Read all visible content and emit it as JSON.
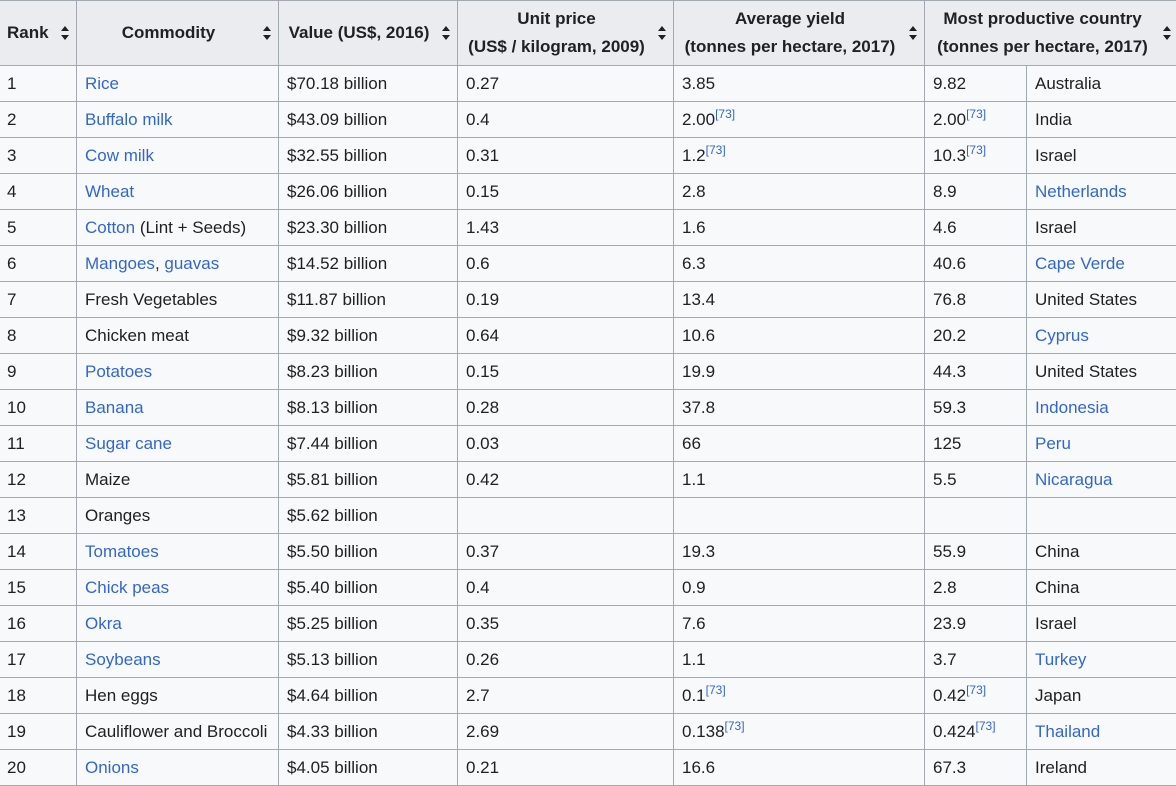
{
  "headers": {
    "rank": "Rank",
    "commodity": "Commodity",
    "value": "Value (US$, 2016)",
    "unit_price_l1": "Unit price",
    "unit_price_l2": "(US$ / kilogram, 2009)",
    "yield_l1": "Average yield",
    "yield_l2": "(tonnes per hectare, 2017)",
    "country_l1": "Most productive country",
    "country_l2": "(tonnes per hectare, 2017)"
  },
  "rows": [
    {
      "rank": "1",
      "commodity": [
        {
          "t": "Rice",
          "link": true
        }
      ],
      "value": "$70.18 billion",
      "price": "0.27",
      "yield": "3.85",
      "yield_ref": "",
      "best": "9.82",
      "best_ref": "",
      "country": "Australia",
      "country_link": false
    },
    {
      "rank": "2",
      "commodity": [
        {
          "t": "Buffalo milk",
          "link": true
        }
      ],
      "value": "$43.09 billion",
      "price": "0.4",
      "yield": "2.00",
      "yield_ref": "[73]",
      "best": "2.00",
      "best_ref": "[73]",
      "country": "India",
      "country_link": false
    },
    {
      "rank": "3",
      "commodity": [
        {
          "t": "Cow milk",
          "link": true
        }
      ],
      "value": "$32.55 billion",
      "price": "0.31",
      "yield": "1.2",
      "yield_ref": "[73]",
      "best": "10.3",
      "best_ref": "[73]",
      "country": "Israel",
      "country_link": false
    },
    {
      "rank": "4",
      "commodity": [
        {
          "t": "Wheat",
          "link": true
        }
      ],
      "value": "$26.06 billion",
      "price": "0.15",
      "yield": "2.8",
      "yield_ref": "",
      "best": "8.9",
      "best_ref": "",
      "country": "Netherlands",
      "country_link": true
    },
    {
      "rank": "5",
      "commodity": [
        {
          "t": "Cotton",
          "link": true
        },
        {
          "t": " (Lint + Seeds)",
          "link": false
        }
      ],
      "value": "$23.30 billion",
      "price": "1.43",
      "yield": "1.6",
      "yield_ref": "",
      "best": "4.6",
      "best_ref": "",
      "country": "Israel",
      "country_link": false
    },
    {
      "rank": "6",
      "commodity": [
        {
          "t": "Mangoes",
          "link": true
        },
        {
          "t": ", ",
          "link": false
        },
        {
          "t": "guavas",
          "link": true
        }
      ],
      "value": "$14.52 billion",
      "price": "0.6",
      "yield": "6.3",
      "yield_ref": "",
      "best": "40.6",
      "best_ref": "",
      "country": "Cape Verde",
      "country_link": true
    },
    {
      "rank": "7",
      "commodity": [
        {
          "t": "Fresh Vegetables",
          "link": false
        }
      ],
      "value": "$11.87 billion",
      "price": "0.19",
      "yield": "13.4",
      "yield_ref": "",
      "best": "76.8",
      "best_ref": "",
      "country": "United States",
      "country_link": false
    },
    {
      "rank": "8",
      "commodity": [
        {
          "t": "Chicken meat",
          "link": false
        }
      ],
      "value": "$9.32 billion",
      "price": "0.64",
      "yield": "10.6",
      "yield_ref": "",
      "best": "20.2",
      "best_ref": "",
      "country": "Cyprus",
      "country_link": true
    },
    {
      "rank": "9",
      "commodity": [
        {
          "t": "Potatoes",
          "link": true
        }
      ],
      "value": "$8.23 billion",
      "price": "0.15",
      "yield": "19.9",
      "yield_ref": "",
      "best": "44.3",
      "best_ref": "",
      "country": "United States",
      "country_link": false
    },
    {
      "rank": "10",
      "commodity": [
        {
          "t": "Banana",
          "link": true
        }
      ],
      "value": "$8.13 billion",
      "price": "0.28",
      "yield": "37.8",
      "yield_ref": "",
      "best": "59.3",
      "best_ref": "",
      "country": "Indonesia",
      "country_link": true
    },
    {
      "rank": "11",
      "commodity": [
        {
          "t": "Sugar cane",
          "link": true
        }
      ],
      "value": "$7.44 billion",
      "price": "0.03",
      "yield": "66",
      "yield_ref": "",
      "best": "125",
      "best_ref": "",
      "country": "Peru",
      "country_link": true
    },
    {
      "rank": "12",
      "commodity": [
        {
          "t": "Maize",
          "link": false
        }
      ],
      "value": "$5.81 billion",
      "price": "0.42",
      "yield": "1.1",
      "yield_ref": "",
      "best": "5.5",
      "best_ref": "",
      "country": "Nicaragua",
      "country_link": true
    },
    {
      "rank": "13",
      "commodity": [
        {
          "t": "Oranges",
          "link": false
        }
      ],
      "value": "$5.62 billion",
      "price": "",
      "yield": "",
      "yield_ref": "",
      "best": "",
      "best_ref": "",
      "country": "",
      "country_link": false
    },
    {
      "rank": "14",
      "commodity": [
        {
          "t": "Tomatoes",
          "link": true
        }
      ],
      "value": "$5.50 billion",
      "price": "0.37",
      "yield": "19.3",
      "yield_ref": "",
      "best": "55.9",
      "best_ref": "",
      "country": "China",
      "country_link": false
    },
    {
      "rank": "15",
      "commodity": [
        {
          "t": "Chick peas",
          "link": true
        }
      ],
      "value": "$5.40 billion",
      "price": "0.4",
      "yield": "0.9",
      "yield_ref": "",
      "best": "2.8",
      "best_ref": "",
      "country": "China",
      "country_link": false
    },
    {
      "rank": "16",
      "commodity": [
        {
          "t": "Okra",
          "link": true
        }
      ],
      "value": "$5.25 billion",
      "price": "0.35",
      "yield": "7.6",
      "yield_ref": "",
      "best": "23.9",
      "best_ref": "",
      "country": "Israel",
      "country_link": false
    },
    {
      "rank": "17",
      "commodity": [
        {
          "t": "Soybeans",
          "link": true
        }
      ],
      "value": "$5.13 billion",
      "price": "0.26",
      "yield": "1.1",
      "yield_ref": "",
      "best": "3.7",
      "best_ref": "",
      "country": "Turkey",
      "country_link": true
    },
    {
      "rank": "18",
      "commodity": [
        {
          "t": "Hen eggs",
          "link": false
        }
      ],
      "value": "$4.64 billion",
      "price": "2.7",
      "yield": "0.1",
      "yield_ref": "[73]",
      "best": "0.42",
      "best_ref": "[73]",
      "country": "Japan",
      "country_link": false
    },
    {
      "rank": "19",
      "commodity": [
        {
          "t": "Cauliflower and Broccoli",
          "link": false
        }
      ],
      "value": "$4.33 billion",
      "price": "2.69",
      "yield": "0.138",
      "yield_ref": "[73]",
      "best": "0.424",
      "best_ref": "[73]",
      "country": "Thailand",
      "country_link": true
    },
    {
      "rank": "20",
      "commodity": [
        {
          "t": "Onions",
          "link": true
        }
      ],
      "value": "$4.05 billion",
      "price": "0.21",
      "yield": "16.6",
      "yield_ref": "",
      "best": "67.3",
      "best_ref": "",
      "country": "Ireland",
      "country_link": false
    }
  ]
}
